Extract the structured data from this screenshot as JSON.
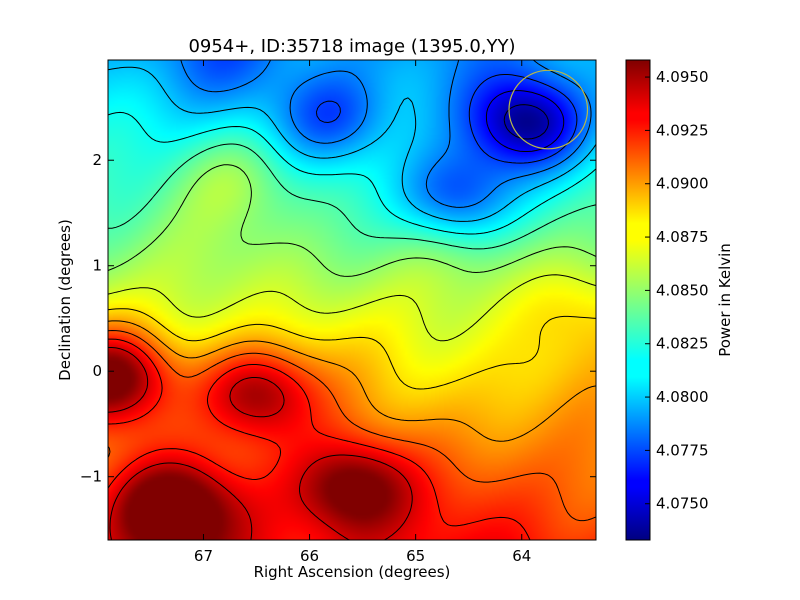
{
  "chart_data": {
    "type": "heatmap",
    "title": "0954+, ID:35718 image (1395.0,YY)",
    "xlabel": "Right Ascension (degrees)",
    "ylabel": "Declination (degrees)",
    "xlim": [
      67.9,
      63.3
    ],
    "ylim": [
      -1.6,
      2.95
    ],
    "xticks": [
      {
        "value": 67,
        "label": "67"
      },
      {
        "value": 66,
        "label": "66"
      },
      {
        "value": 65,
        "label": "65"
      },
      {
        "value": 64,
        "label": "64"
      }
    ],
    "yticks": [
      {
        "value": 2,
        "label": "2"
      },
      {
        "value": 1,
        "label": "1"
      },
      {
        "value": 0,
        "label": "0"
      },
      {
        "value": -1,
        "label": "−1"
      }
    ],
    "colorbar": {
      "label": "Power in Kelvin",
      "range": [
        4.0733,
        4.0958
      ],
      "ticks": [
        {
          "value": 4.075,
          "label": "4.0750"
        },
        {
          "value": 4.0775,
          "label": "4.0775"
        },
        {
          "value": 4.08,
          "label": "4.0800"
        },
        {
          "value": 4.0825,
          "label": "4.0825"
        },
        {
          "value": 4.085,
          "label": "4.0850"
        },
        {
          "value": 4.0875,
          "label": "4.0875"
        },
        {
          "value": 4.09,
          "label": "4.0900"
        },
        {
          "value": 4.0925,
          "label": "4.0925"
        },
        {
          "value": 4.095,
          "label": "4.0950"
        }
      ]
    },
    "colormap": "jet",
    "contour_color": "#000000",
    "features": [
      {
        "name": "peak",
        "ra": 67.85,
        "dec": -0.05,
        "value": 4.0955
      },
      {
        "name": "peak",
        "ra": 66.5,
        "dec": -0.2,
        "value": 4.0935
      },
      {
        "name": "peak",
        "ra": 65.6,
        "dec": -1.1,
        "value": 4.093
      },
      {
        "name": "peak",
        "ra": 67.3,
        "dec": -1.3,
        "value": 4.094
      },
      {
        "name": "minimum",
        "ra": 63.95,
        "dec": 2.35,
        "value": 4.0735
      },
      {
        "name": "minimum",
        "ra": 64.6,
        "dec": 1.65,
        "value": 4.0765
      },
      {
        "name": "minimum",
        "ra": 65.8,
        "dec": 2.4,
        "value": 4.079
      },
      {
        "name": "bump",
        "ra": 66.7,
        "dec": 1.85,
        "value": 4.087
      },
      {
        "name": "plateau",
        "ra": 63.45,
        "dec": 0.6,
        "value": 4.0865
      },
      {
        "name": "plateau",
        "ra": 63.55,
        "dec": -0.7,
        "value": 4.0845
      },
      {
        "name": "minimum",
        "ra": 66.8,
        "dec": 2.95,
        "value": 4.0825
      }
    ],
    "circle": {
      "ra": 63.75,
      "dec": 2.48,
      "radius_deg": 0.37,
      "color": "#b8b84a"
    },
    "grid": false
  }
}
